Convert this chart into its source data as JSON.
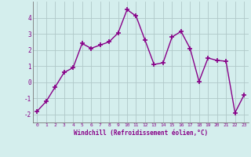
{
  "x": [
    0,
    1,
    2,
    3,
    4,
    5,
    6,
    7,
    8,
    9,
    10,
    11,
    12,
    13,
    14,
    15,
    16,
    17,
    18,
    19,
    20,
    21,
    22,
    23
  ],
  "y": [
    -1.8,
    -1.2,
    -0.3,
    0.6,
    0.9,
    2.4,
    2.1,
    2.3,
    2.5,
    3.05,
    4.5,
    4.1,
    2.6,
    1.1,
    1.2,
    2.8,
    3.15,
    2.1,
    0.05,
    1.5,
    1.35,
    1.3,
    -1.9,
    -0.8
  ],
  "line_color": "#880088",
  "marker": "+",
  "markersize": 4,
  "markeredgewidth": 1.2,
  "linewidth": 1.0,
  "bg_color": "#d4eeed",
  "grid_color": "#b0c8c8",
  "xlabel": "Windchill (Refroidissement éolien,°C)",
  "xlabel_color": "#880088",
  "tick_color": "#880088",
  "axis_color": "#777777",
  "ylim": [
    -2.5,
    5.0
  ],
  "xlim": [
    -0.5,
    23.5
  ],
  "yticks": [
    -2,
    -1,
    0,
    1,
    2,
    3,
    4
  ],
  "xticks": [
    0,
    1,
    2,
    3,
    4,
    5,
    6,
    7,
    8,
    9,
    10,
    11,
    12,
    13,
    14,
    15,
    16,
    17,
    18,
    19,
    20,
    21,
    22,
    23
  ]
}
